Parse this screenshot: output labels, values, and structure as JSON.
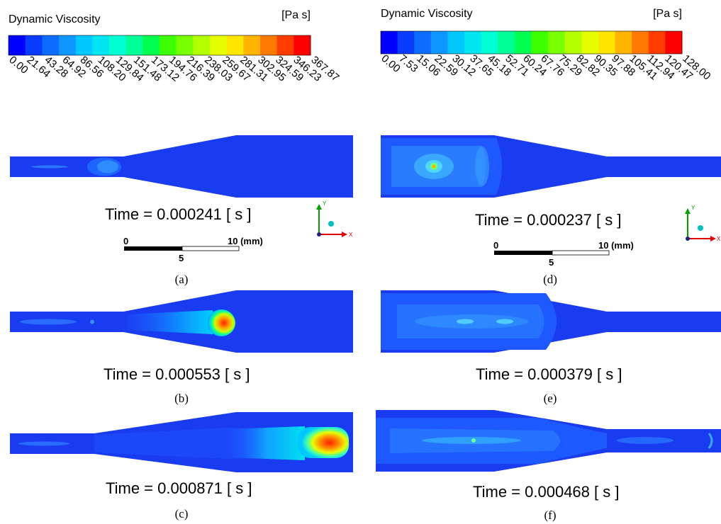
{
  "legends": [
    {
      "id": "left",
      "title": "Dynamic Viscosity",
      "unit": "[Pa s]",
      "ticks": [
        "0.00",
        "21.64",
        "43.28",
        "64.92",
        "86.56",
        "108.20",
        "129.84",
        "151.48",
        "173.12",
        "194.76",
        "216.39",
        "238.03",
        "259.67",
        "281.31",
        "302.95",
        "324.59",
        "346.23",
        "367.87"
      ]
    },
    {
      "id": "right",
      "title": "Dynamic Viscosity",
      "unit": "[Pa s]",
      "ticks": [
        "0.00",
        "7.53",
        "15.06",
        "22.59",
        "30.12",
        "37.65",
        "45.18",
        "52.71",
        "60.24",
        "67.76",
        "75.29",
        "82.82",
        "90.35",
        "97.88",
        "105.41",
        "112.94",
        "120.47",
        "128.00"
      ]
    }
  ],
  "colormap": [
    "#0000ff",
    "#0a3cff",
    "#0c6cff",
    "#0d96ff",
    "#00c8ff",
    "#00e6f0",
    "#00ffd2",
    "#00ff96",
    "#00ff50",
    "#3cff00",
    "#78ff00",
    "#b4ff00",
    "#e6ff00",
    "#ffe600",
    "#ffb400",
    "#ff7800",
    "#ff3c00",
    "#ff0000"
  ],
  "panels": {
    "a": {
      "label": "(a)",
      "time": "Time = 0.000241 [ s ]"
    },
    "b": {
      "label": "(b)",
      "time": "Time = 0.000553 [ s ]"
    },
    "c": {
      "label": "(c)",
      "time": "Time = 0.000871 [ s ]"
    },
    "d": {
      "label": "(d)",
      "time": "Time = 0.000237 [ s ]"
    },
    "e": {
      "label": "(e)",
      "time": "Time = 0.000379 [ s ]"
    },
    "f": {
      "label": "(f)",
      "time": "Time = 0.000468 [ s ]"
    }
  },
  "scalebars": [
    {
      "zero": "0",
      "mid": "5",
      "end": "10 (mm)"
    },
    {
      "zero": "0",
      "mid": "5",
      "end": "10 (mm)"
    }
  ],
  "axes": {
    "y": "Y",
    "x": "X"
  }
}
